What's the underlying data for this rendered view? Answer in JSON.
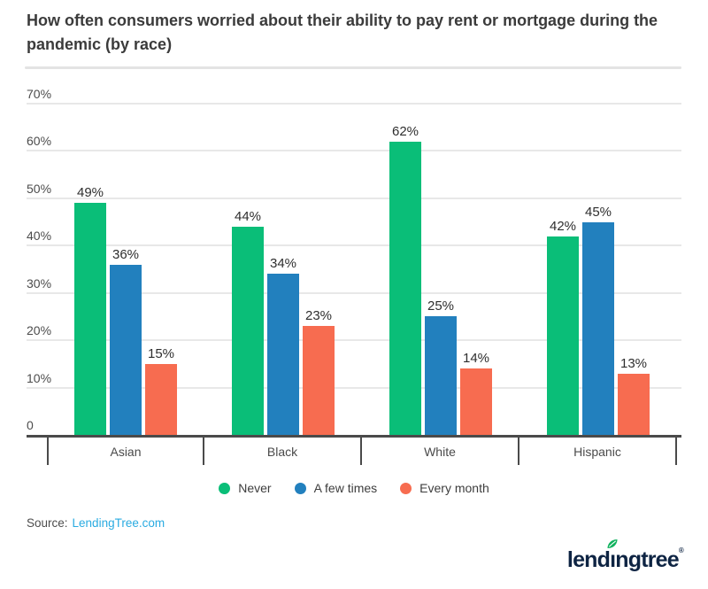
{
  "title": "How often consumers worried about their ability to pay rent or mortgage during the pandemic (by race)",
  "chart_data": {
    "type": "bar",
    "categories": [
      "Asian",
      "Black",
      "White",
      "Hispanic"
    ],
    "series": [
      {
        "name": "Never",
        "color": "#0abe78",
        "values": [
          49,
          44,
          62,
          42
        ]
      },
      {
        "name": "A few times",
        "color": "#2280be",
        "values": [
          36,
          34,
          25,
          45
        ]
      },
      {
        "name": "Every month",
        "color": "#f76c50",
        "values": [
          15,
          23,
          14,
          13
        ]
      }
    ],
    "value_label_suffix": "%",
    "ylim": [
      0,
      70
    ],
    "yticks": [
      {
        "value": 0,
        "label": "0"
      },
      {
        "value": 10,
        "label": "10%"
      },
      {
        "value": 20,
        "label": "20%"
      },
      {
        "value": 30,
        "label": "30%"
      },
      {
        "value": 40,
        "label": "40%"
      },
      {
        "value": 50,
        "label": "50%"
      },
      {
        "value": 60,
        "label": "60%"
      },
      {
        "value": 70,
        "label": "70%"
      }
    ],
    "grid": true,
    "legend_position": "bottom"
  },
  "source": {
    "prefix": "Source:",
    "link_text": "LendingTree.com",
    "link_color": "#2aabe1"
  },
  "logo": {
    "pre": "lend",
    "dotless_i": "ı",
    "post": "ngtree",
    "mark": "®",
    "leaf_color": "#10b25e",
    "text_color": "#0e2443"
  },
  "colors": {
    "axis": "#4a4a4a",
    "gridline": "#e8e8e8",
    "title_text": "#3b3b3b"
  }
}
